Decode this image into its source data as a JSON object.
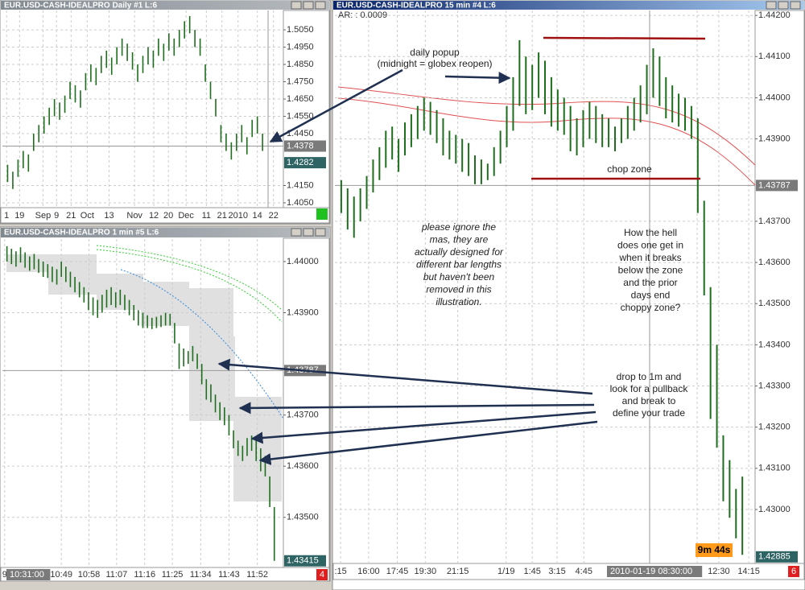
{
  "chart_data": [
    {
      "type": "ohlc",
      "title": "EUR.USD-CASH-IDEALPRO Daily #1 L:6",
      "color": "#1e6e1e",
      "highs": [
        1.427,
        1.423,
        1.43,
        1.435,
        1.433,
        1.445,
        1.45,
        1.455,
        1.46,
        1.465,
        1.463,
        1.467,
        1.475,
        1.473,
        1.47,
        1.48,
        1.485,
        1.483,
        1.49,
        1.493,
        1.489,
        1.495,
        1.5,
        1.497,
        1.492,
        1.485,
        1.49,
        1.495,
        1.493,
        1.5,
        1.497,
        1.503,
        1.5,
        1.505,
        1.51,
        1.513,
        1.505,
        1.5,
        1.485,
        1.475,
        1.465,
        1.45,
        1.445,
        1.44,
        1.445,
        1.45,
        1.443,
        1.453,
        1.455,
        1.445
      ],
      "lows": [
        1.417,
        1.413,
        1.42,
        1.425,
        1.423,
        1.435,
        1.44,
        1.445,
        1.45,
        1.455,
        1.453,
        1.457,
        1.465,
        1.463,
        1.46,
        1.47,
        1.475,
        1.473,
        1.48,
        1.483,
        1.479,
        1.485,
        1.49,
        1.487,
        1.482,
        1.475,
        1.48,
        1.485,
        1.483,
        1.49,
        1.487,
        1.493,
        1.49,
        1.495,
        1.5,
        1.503,
        1.495,
        1.49,
        1.475,
        1.465,
        1.455,
        1.44,
        1.435,
        1.43,
        1.435,
        1.44,
        1.433,
        1.443,
        1.445,
        1.435
      ],
      "xlim": [
        -1,
        53
      ],
      "xticks": [
        {
          "value": -0.2,
          "label": "1"
        },
        {
          "value": 2.3,
          "label": "19"
        },
        {
          "value": 6.8,
          "label": "Sep"
        },
        {
          "value": 9.4,
          "label": "9"
        },
        {
          "value": 12.2,
          "label": "21"
        },
        {
          "value": 15.3,
          "label": "Oct"
        },
        {
          "value": 19.5,
          "label": "13"
        },
        {
          "value": 24.4,
          "label": "Nov"
        },
        {
          "value": 28.1,
          "label": "12"
        },
        {
          "value": 30.9,
          "label": "20"
        },
        {
          "value": 34.3,
          "label": "Dec"
        },
        {
          "value": 38.2,
          "label": "11"
        },
        {
          "value": 41.2,
          "label": "21"
        },
        {
          "value": 44.3,
          "label": "2010"
        },
        {
          "value": 48.0,
          "label": "14"
        },
        {
          "value": 51.1,
          "label": "22"
        }
      ],
      "ylim": [
        1.4022,
        1.5162
      ],
      "yticks": [
        {
          "value": 1.505,
          "label": "1.5050"
        },
        {
          "value": 1.495,
          "label": "1.4950"
        },
        {
          "value": 1.485,
          "label": "1.4850"
        },
        {
          "value": 1.475,
          "label": "1.4750"
        },
        {
          "value": 1.465,
          "label": "1.4650"
        },
        {
          "value": 1.455,
          "label": "1.4550"
        },
        {
          "value": 1.445,
          "label": "1.4450"
        },
        {
          "value": 1.415,
          "label": "1.4150"
        },
        {
          "value": 1.405,
          "label": "1.4050"
        }
      ],
      "crosshair_price": 1.4378,
      "last_price": 1.4282,
      "grid": true
    },
    {
      "type": "ohlc",
      "title": "EUR.USD-CASH-IDEALPRO 15 min #4 L:6",
      "color": "#1e6e1e",
      "indicator": "AR: : 0.0009",
      "timer": "9m 44s",
      "crosshair_time": "2010-01-19 08:30:00",
      "corner": "6",
      "highs": [
        1.438,
        1.4378,
        1.4376,
        1.4378,
        1.4381,
        1.4385,
        1.4388,
        1.4392,
        1.4393,
        1.439,
        1.4394,
        1.4396,
        1.4398,
        1.44,
        1.4399,
        1.4397,
        1.4395,
        1.4392,
        1.4391,
        1.439,
        1.4389,
        1.4386,
        1.4385,
        1.4384,
        1.4388,
        1.4392,
        1.4398,
        1.4405,
        1.4414,
        1.441,
        1.4408,
        1.4411,
        1.4409,
        1.4405,
        1.4402,
        1.44,
        1.4398,
        1.4395,
        1.4397,
        1.4399,
        1.4398,
        1.4396,
        1.4395,
        1.4393,
        1.4395,
        1.4398,
        1.44,
        1.4403,
        1.4408,
        1.4412,
        1.441,
        1.4405,
        1.4403,
        1.4401,
        1.44,
        1.4398,
        1.4395,
        1.4375,
        1.4354,
        1.434,
        1.4318,
        1.4312,
        1.4305,
        1.4308
      ],
      "lows": [
        1.4372,
        1.4368,
        1.4366,
        1.437,
        1.4373,
        1.4377,
        1.438,
        1.4383,
        1.4385,
        1.4382,
        1.4386,
        1.4388,
        1.439,
        1.4392,
        1.4391,
        1.4389,
        1.4386,
        1.4385,
        1.4384,
        1.4382,
        1.4381,
        1.4379,
        1.4379,
        1.438,
        1.4381,
        1.4384,
        1.4388,
        1.4392,
        1.4398,
        1.4396,
        1.4397,
        1.44,
        1.4396,
        1.4393,
        1.4392,
        1.4391,
        1.4387,
        1.4386,
        1.4388,
        1.439,
        1.4389,
        1.4388,
        1.4388,
        1.4387,
        1.4389,
        1.439,
        1.4392,
        1.4394,
        1.4396,
        1.44,
        1.4398,
        1.4395,
        1.4394,
        1.4393,
        1.4392,
        1.439,
        1.4372,
        1.4352,
        1.4322,
        1.4315,
        1.4302,
        1.4298,
        1.4293,
        1.4289
      ],
      "xlim": [
        -1,
        65
      ],
      "xticks": [
        {
          "value": -0.1,
          "label": ":15"
        },
        {
          "value": 4.3,
          "label": "16:00"
        },
        {
          "value": 8.8,
          "label": "17:45"
        },
        {
          "value": 13.2,
          "label": "19:30"
        },
        {
          "value": 18.3,
          "label": "21:15"
        },
        {
          "value": 25.9,
          "label": "1/19"
        },
        {
          "value": 30.0,
          "label": "1:45"
        },
        {
          "value": 33.9,
          "label": "3:15"
        },
        {
          "value": 38.1,
          "label": "4:45"
        },
        {
          "value": 55.9,
          "label": "5"
        },
        {
          "value": 59.3,
          "label": "12:30"
        },
        {
          "value": 64.0,
          "label": "14:15"
        }
      ],
      "ylim": [
        1.42869,
        1.44212
      ],
      "yticks": [
        {
          "value": 1.442,
          "label": "1.44200"
        },
        {
          "value": 1.441,
          "label": "1.44100"
        },
        {
          "value": 1.44,
          "label": "1.44000"
        },
        {
          "value": 1.439,
          "label": "1.43900"
        },
        {
          "value": 1.437,
          "label": "1.43700"
        },
        {
          "value": 1.436,
          "label": "1.43600"
        },
        {
          "value": 1.435,
          "label": "1.43500"
        },
        {
          "value": 1.434,
          "label": "1.43400"
        },
        {
          "value": 1.433,
          "label": "1.43300"
        },
        {
          "value": 1.432,
          "label": "1.43200"
        },
        {
          "value": 1.431,
          "label": "1.43100"
        },
        {
          "value": 1.43,
          "label": "1.43000"
        }
      ],
      "crosshair_price": 1.43787,
      "last_price": 1.42885,
      "grid": true
    },
    {
      "type": "ohlc",
      "title": "EUR.USD-CASH-IDEALPRO 1 min #5 L:6",
      "color": "#1e6e1e",
      "crosshair_time": "10:31:00",
      "corner": "4",
      "highs": [
        1.4403,
        1.44025,
        1.4402,
        1.44028,
        1.44018,
        1.4401,
        1.44015,
        1.44005,
        1.44,
        1.43995,
        1.4399,
        1.43985,
        1.44,
        1.4399,
        1.4398,
        1.4397,
        1.4396,
        1.4395,
        1.4394,
        1.4393,
        1.43925,
        1.43935,
        1.43945,
        1.4395,
        1.4394,
        1.43945,
        1.43935,
        1.43925,
        1.43915,
        1.43905,
        1.439,
        1.43895,
        1.4389,
        1.43892,
        1.43895,
        1.439,
        1.43898,
        1.4388,
        1.4384,
        1.4383,
        1.43825,
        1.43835,
        1.4382,
        1.438,
        1.4377,
        1.4376,
        1.4374,
        1.43725,
        1.43715,
        1.437,
        1.4367,
        1.4365,
        1.4364,
        1.43655,
        1.4366,
        1.4365,
        1.43635,
        1.4362,
        1.4358,
        1.4352
      ],
      "lows": [
        1.44,
        1.43995,
        1.4399,
        1.43998,
        1.43988,
        1.43982,
        1.43985,
        1.43978,
        1.4397,
        1.43968,
        1.4396,
        1.43955,
        1.4397,
        1.4396,
        1.4395,
        1.4394,
        1.4393,
        1.4392,
        1.43905,
        1.43895,
        1.4389,
        1.439,
        1.4391,
        1.43915,
        1.4391,
        1.43915,
        1.43905,
        1.43895,
        1.43885,
        1.43875,
        1.4387,
        1.4387,
        1.43868,
        1.4387,
        1.43872,
        1.43875,
        1.43875,
        1.4384,
        1.4379,
        1.43795,
        1.438,
        1.43805,
        1.4379,
        1.4376,
        1.4373,
        1.43725,
        1.43705,
        1.4369,
        1.4368,
        1.4366,
        1.43635,
        1.4362,
        1.4361,
        1.4362,
        1.4363,
        1.4361,
        1.4359,
        1.4358,
        1.4352,
        1.43415
      ],
      "xlim": [
        -1,
        61
      ],
      "xticks": [
        {
          "value": -0.5,
          "label": "9"
        },
        {
          "value": 12.0,
          "label": "10:49"
        },
        {
          "value": 18.1,
          "label": "10:58"
        },
        {
          "value": 24.2,
          "label": "11:07"
        },
        {
          "value": 30.4,
          "label": "11:16"
        },
        {
          "value": 36.5,
          "label": "11:25"
        },
        {
          "value": 42.75,
          "label": "11:34"
        },
        {
          "value": 49.0,
          "label": "11:43"
        },
        {
          "value": 55.25,
          "label": "11:52"
        }
      ],
      "ylim": [
        1.43402,
        1.44044
      ],
      "yticks": [
        {
          "value": 1.44,
          "label": "1.44000"
        },
        {
          "value": 1.439,
          "label": "1.43900"
        },
        {
          "value": 1.437,
          "label": "1.43700"
        },
        {
          "value": 1.436,
          "label": "1.43600"
        },
        {
          "value": 1.435,
          "label": "1.43500"
        }
      ],
      "crosshair_price": 1.43787,
      "last_price": 1.43415,
      "grid": true
    }
  ],
  "annotations": {
    "daily_popup": [
      "daily popup",
      "(midnight = globex reopen)"
    ],
    "chop_zone": "chop zone",
    "ignore_mas": [
      "please ignore the",
      "mas, they are",
      "actually designed for",
      "different bar lengths",
      "but haven't been",
      "removed in this",
      "illustration."
    ],
    "question": [
      "How the hell",
      "does one get in",
      "when it breaks",
      "below the zone",
      "and the prior",
      "days end",
      "choppy zone?"
    ],
    "advice": [
      "drop to 1m and",
      "look for a pullback",
      "and break to",
      "define your trade"
    ]
  }
}
